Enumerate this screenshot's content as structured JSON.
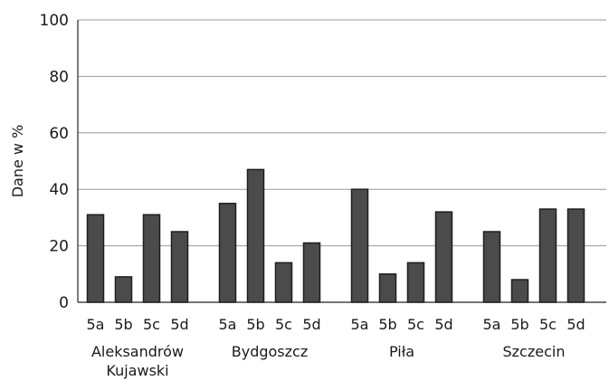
{
  "chart_data": {
    "type": "bar",
    "ylabel": "Dane w %",
    "xlabel": "",
    "title": "",
    "ylim": [
      0,
      100
    ],
    "yticks": [
      0,
      20,
      40,
      60,
      80,
      100
    ],
    "grid": true,
    "groups": [
      {
        "label": [
          "Aleksandrów",
          "Kujawski"
        ],
        "categories": [
          "5a",
          "5b",
          "5c",
          "5d"
        ],
        "values": [
          31,
          9,
          31,
          25
        ]
      },
      {
        "label": [
          "Bydgoszcz"
        ],
        "categories": [
          "5a",
          "5b",
          "5c",
          "5d"
        ],
        "values": [
          35,
          47,
          14,
          21
        ]
      },
      {
        "label": [
          "Piła"
        ],
        "categories": [
          "5a",
          "5b",
          "5c",
          "5d"
        ],
        "values": [
          40,
          10,
          14,
          32
        ]
      },
      {
        "label": [
          "Szczecin"
        ],
        "categories": [
          "5a",
          "5b",
          "5c",
          "5d"
        ],
        "values": [
          25,
          8,
          33,
          33
        ]
      }
    ],
    "colors": {
      "bar": "#4b4b4b",
      "bar_edge": "#1e1e1e",
      "grid": "#9a9a9a"
    }
  }
}
